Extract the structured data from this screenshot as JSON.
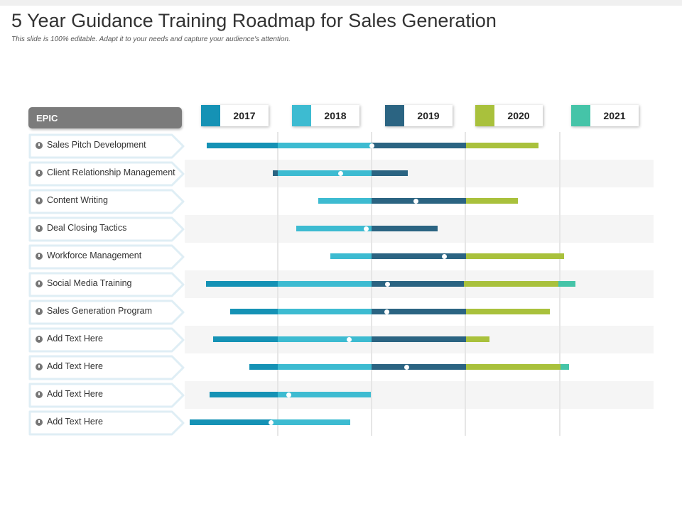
{
  "title": "5 Year Guidance Training Roadmap for Sales Generation",
  "subtitle": "This slide is 100% editable. Adapt it to your needs and capture your audience's attention.",
  "epic_label": "EPIC",
  "colors": {
    "y2017": "#1592b5",
    "y2018": "#3dbbd1",
    "y2019": "#2b6482",
    "y2020": "#a9c13c",
    "y2021": "#45c4a8"
  },
  "years": [
    {
      "label": "2017",
      "color_key": "y2017"
    },
    {
      "label": "2018",
      "color_key": "y2018"
    },
    {
      "label": "2019",
      "color_key": "y2019"
    },
    {
      "label": "2020",
      "color_key": "y2020"
    },
    {
      "label": "2021",
      "color_key": "y2021"
    }
  ],
  "chart_data": {
    "type": "gantt",
    "x_unit": "years",
    "x_range": [
      2017.0,
      2022.0
    ],
    "rows": [
      {
        "label": "Sales Pitch Development",
        "segments": [
          {
            "from": 2017.25,
            "to": 2018.0,
            "color_key": "y2017"
          },
          {
            "from": 2018.0,
            "to": 2019.0,
            "color_key": "y2018"
          },
          {
            "from": 2019.0,
            "to": 2020.0,
            "color_key": "y2019"
          },
          {
            "from": 2020.0,
            "to": 2020.77,
            "color_key": "y2020"
          }
        ],
        "marker": 2019.0
      },
      {
        "label": "Client Relationship Management",
        "segments": [
          {
            "from": 2017.95,
            "to": 2018.0,
            "color_key": "y2019"
          },
          {
            "from": 2018.0,
            "to": 2019.0,
            "color_key": "y2018"
          },
          {
            "from": 2019.0,
            "to": 2019.38,
            "color_key": "y2019"
          }
        ],
        "marker": 2018.67
      },
      {
        "label": "Content Writing",
        "segments": [
          {
            "from": 2018.43,
            "to": 2019.0,
            "color_key": "y2018"
          },
          {
            "from": 2019.0,
            "to": 2020.0,
            "color_key": "y2019"
          },
          {
            "from": 2020.0,
            "to": 2020.55,
            "color_key": "y2020"
          }
        ],
        "marker": 2019.47
      },
      {
        "label": "Deal Closing Tactics",
        "segments": [
          {
            "from": 2018.2,
            "to": 2019.0,
            "color_key": "y2018"
          },
          {
            "from": 2019.0,
            "to": 2019.7,
            "color_key": "y2019"
          }
        ],
        "marker": 2018.94
      },
      {
        "label": "Workforce Management",
        "segments": [
          {
            "from": 2018.56,
            "to": 2019.0,
            "color_key": "y2018"
          },
          {
            "from": 2019.0,
            "to": 2020.0,
            "color_key": "y2019"
          },
          {
            "from": 2020.0,
            "to": 2021.04,
            "color_key": "y2020"
          }
        ],
        "marker": 2019.77
      },
      {
        "label": "Social Media Training",
        "segments": [
          {
            "from": 2017.24,
            "to": 2018.0,
            "color_key": "y2017"
          },
          {
            "from": 2018.0,
            "to": 2019.0,
            "color_key": "y2018"
          },
          {
            "from": 2019.0,
            "to": 2019.98,
            "color_key": "y2019"
          },
          {
            "from": 2019.98,
            "to": 2020.98,
            "color_key": "y2020"
          },
          {
            "from": 2020.98,
            "to": 2021.16,
            "color_key": "y2021"
          }
        ],
        "marker": 2019.17
      },
      {
        "label": "Sales Generation Program",
        "segments": [
          {
            "from": 2017.5,
            "to": 2018.0,
            "color_key": "y2017"
          },
          {
            "from": 2018.0,
            "to": 2019.0,
            "color_key": "y2018"
          },
          {
            "from": 2019.0,
            "to": 2020.0,
            "color_key": "y2019"
          },
          {
            "from": 2020.0,
            "to": 2020.89,
            "color_key": "y2020"
          }
        ],
        "marker": 2019.16
      },
      {
        "label": "Add Text Here",
        "segments": [
          {
            "from": 2017.32,
            "to": 2018.0,
            "color_key": "y2017"
          },
          {
            "from": 2018.0,
            "to": 2019.0,
            "color_key": "y2018"
          },
          {
            "from": 2019.0,
            "to": 2020.0,
            "color_key": "y2019"
          },
          {
            "from": 2020.0,
            "to": 2020.25,
            "color_key": "y2020"
          }
        ],
        "marker": 2018.76
      },
      {
        "label": "Add Text Here",
        "segments": [
          {
            "from": 2017.7,
            "to": 2018.0,
            "color_key": "y2017"
          },
          {
            "from": 2018.0,
            "to": 2019.0,
            "color_key": "y2018"
          },
          {
            "from": 2019.0,
            "to": 2020.0,
            "color_key": "y2019"
          },
          {
            "from": 2020.0,
            "to": 2021.0,
            "color_key": "y2020"
          },
          {
            "from": 2021.0,
            "to": 2021.09,
            "color_key": "y2021"
          }
        ],
        "marker": 2019.37
      },
      {
        "label": "Add Text Here",
        "segments": [
          {
            "from": 2017.28,
            "to": 2018.0,
            "color_key": "y2017"
          },
          {
            "from": 2018.0,
            "to": 2018.99,
            "color_key": "y2018"
          }
        ],
        "marker": 2018.12
      },
      {
        "label": "Add Text Here",
        "segments": [
          {
            "from": 2017.07,
            "to": 2017.93,
            "color_key": "y2017"
          },
          {
            "from": 2017.93,
            "to": 2018.77,
            "color_key": "y2018"
          }
        ],
        "marker": 2017.93
      }
    ]
  }
}
